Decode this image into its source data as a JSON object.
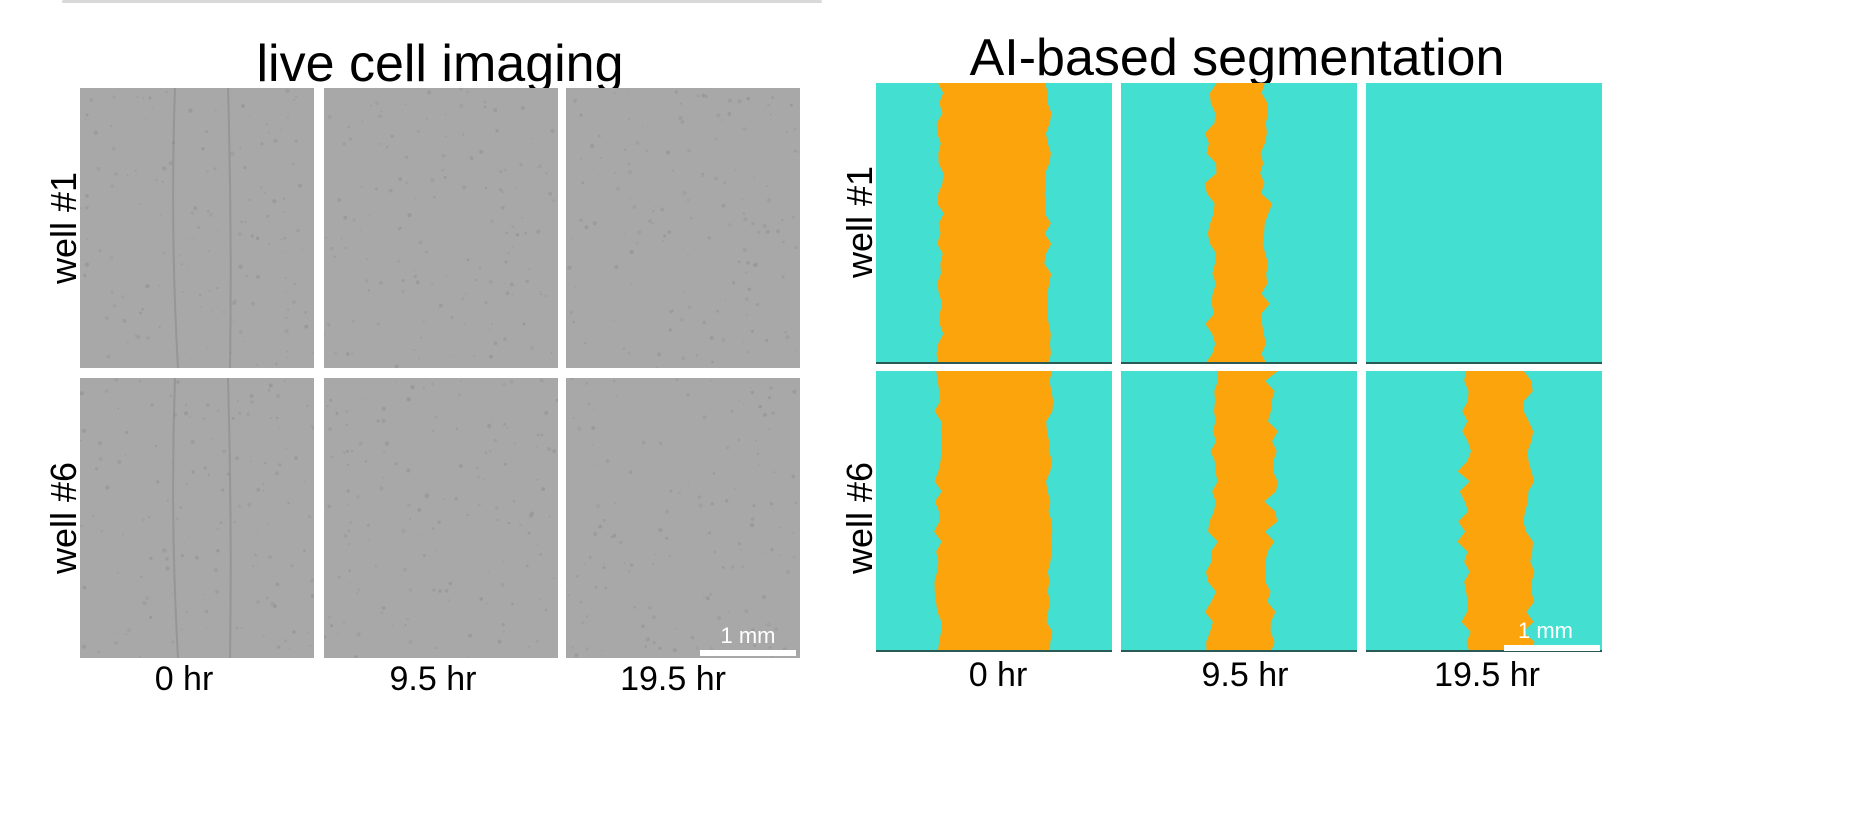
{
  "figure": {
    "colors": {
      "micrograph": "#a8a8a8",
      "micrograph_grain": "#8f8f8f",
      "background_mask": "#43dfd0",
      "gap_mask": "#fca40c",
      "tile_edge": "#2a5a55"
    },
    "panels": [
      {
        "id": "live",
        "title": "live cell imaging",
        "kind": "grayscale-micrograph",
        "rows": [
          "well #1",
          "well #6"
        ],
        "columns": [
          "0 hr",
          "9.5 hr",
          "19.5 hr"
        ],
        "scalebar": "1 mm"
      },
      {
        "id": "seg",
        "title": "AI-based segmentation",
        "kind": "segmentation-mask",
        "rows": [
          "well #1",
          "well #6"
        ],
        "columns": [
          "0 hr",
          "9.5 hr",
          "19.5 hr"
        ],
        "scalebar": "1 mm",
        "gap_visible": [
          [
            true,
            true,
            false
          ],
          [
            true,
            true,
            true
          ]
        ]
      }
    ]
  }
}
